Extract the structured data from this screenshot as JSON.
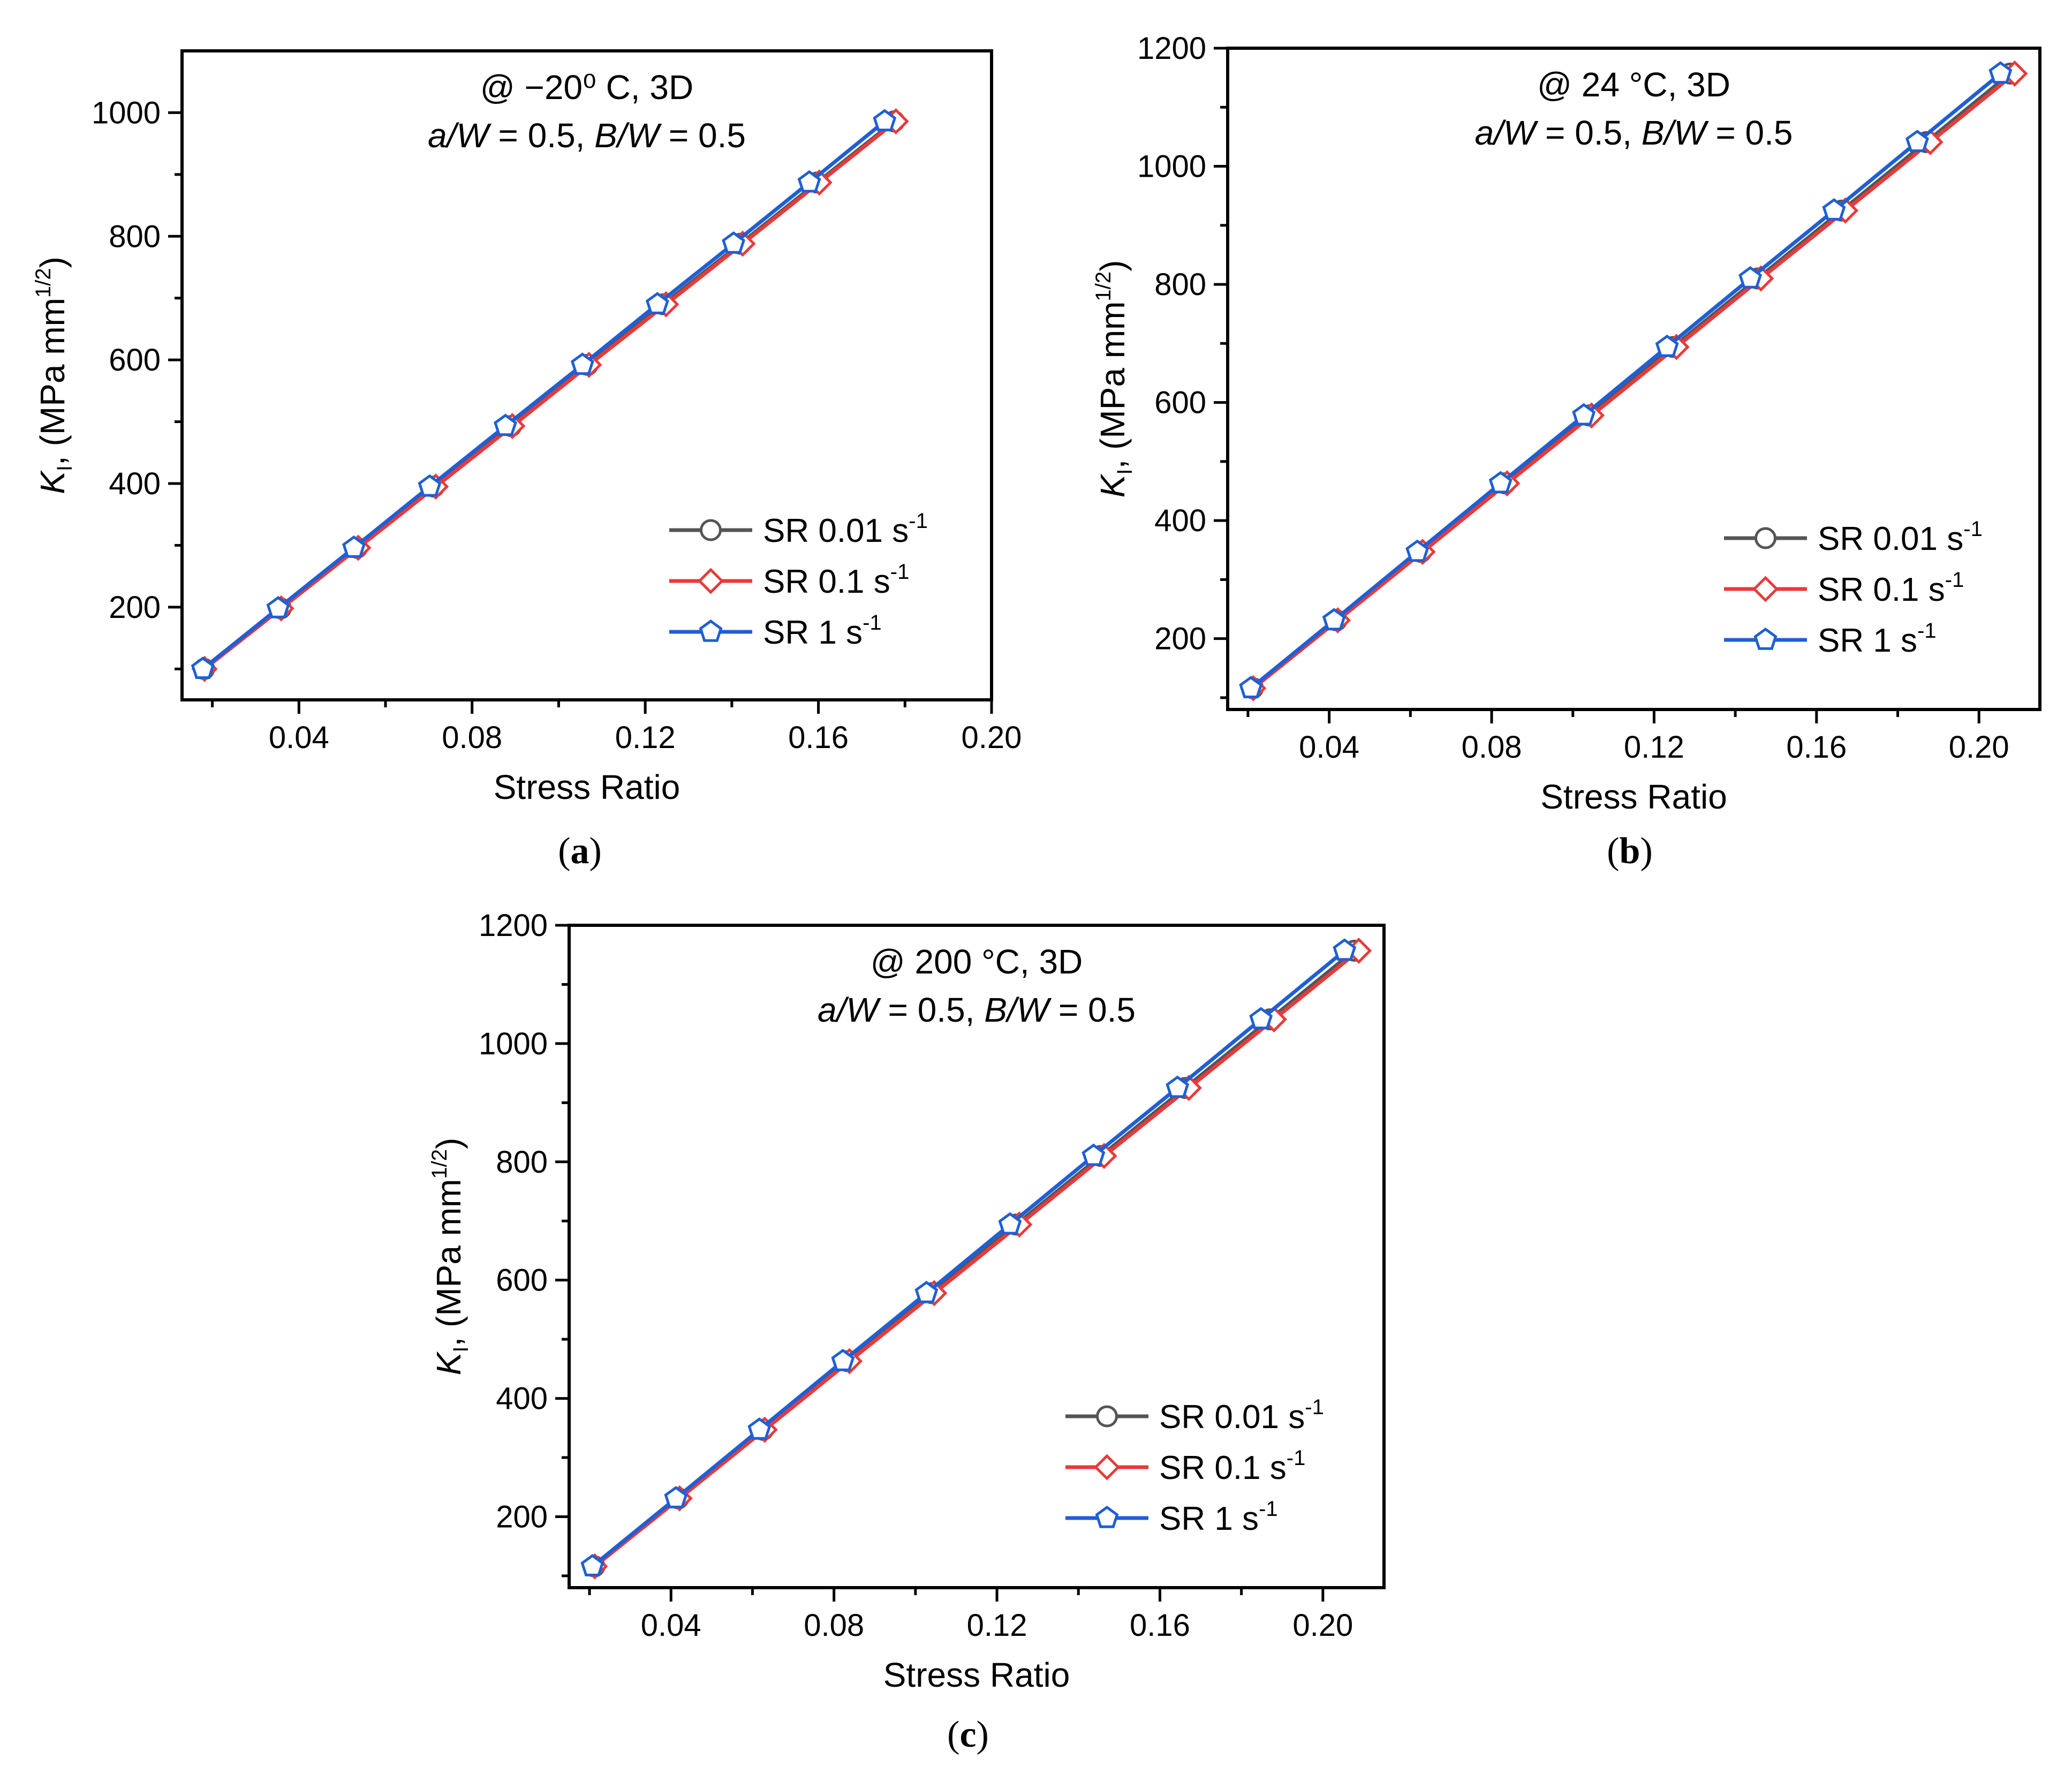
{
  "chart_data": [
    {
      "type": "line",
      "panel_label": "(a)",
      "title_line1": "@ −20⁰ C, 3D",
      "title_line2": "a/W = 0.5, B/W = 0.5",
      "xlabel": "Stress Ratio",
      "ylabel_symbol": "K",
      "ylabel_sub": "I",
      "ylabel_text": ", (MPa mm",
      "ylabel_sup": "1/2",
      "ylabel_end": ")",
      "xlim": [
        0.013,
        0.2
      ],
      "ylim": [
        50,
        1100
      ],
      "xticks": [
        0.04,
        0.08,
        0.12,
        0.16,
        0.2
      ],
      "xtick_labels": [
        "0.04",
        "0.08",
        "0.12",
        "0.16",
        "0.20"
      ],
      "yticks": [
        200,
        400,
        600,
        800,
        1000
      ],
      "ytick_labels": [
        "200",
        "400",
        "600",
        "800",
        "1000"
      ],
      "y_values": [
        100,
        198,
        296,
        395,
        493,
        592,
        690,
        788,
        887,
        986
      ],
      "series": [
        {
          "name": "SR 0.01 s",
          "sup": "-1",
          "color": "#555555",
          "marker": "circle",
          "x": [
            0.0181,
            0.0358,
            0.0534,
            0.0712,
            0.089,
            0.1067,
            0.1242,
            0.142,
            0.1597,
            0.1775
          ]
        },
        {
          "name": "SR 0.1 s",
          "sup": "-1",
          "color": "#e83a3a",
          "marker": "diamond",
          "x": [
            0.0182,
            0.0359,
            0.0537,
            0.0716,
            0.0893,
            0.107,
            0.1248,
            0.1425,
            0.1602,
            0.1779
          ]
        },
        {
          "name": "SR 1 s",
          "sup": "-1",
          "color": "#1f5fd6",
          "marker": "pentagon",
          "x": [
            0.0178,
            0.0352,
            0.0527,
            0.0702,
            0.0877,
            0.1055,
            0.1228,
            0.1404,
            0.1579,
            0.1753
          ]
        }
      ]
    },
    {
      "type": "line",
      "panel_label": "(b)",
      "title_line1": "@ 24 °C, 3D",
      "title_line2": "a/W = 0.5, B/W = 0.5",
      "xlabel": "Stress Ratio",
      "ylabel_symbol": "K",
      "ylabel_sub": "I",
      "ylabel_text": ", (MPa mm",
      "ylabel_sup": "1/2",
      "ylabel_end": ")",
      "xlim": [
        0.015,
        0.215
      ],
      "ylim": [
        80,
        1200
      ],
      "xticks": [
        0.04,
        0.08,
        0.12,
        0.16,
        0.2
      ],
      "xtick_labels": [
        "0.04",
        "0.08",
        "0.12",
        "0.16",
        "0.20"
      ],
      "yticks": [
        200,
        400,
        600,
        800,
        1000,
        1200
      ],
      "ytick_labels": [
        "200",
        "400",
        "600",
        "800",
        "1000",
        "1200"
      ],
      "y_values": [
        116,
        231,
        347,
        463,
        578,
        694,
        810,
        925,
        1041,
        1157
      ],
      "series": [
        {
          "name": "SR 0.01 s",
          "sup": "-1",
          "color": "#555555",
          "marker": "circle",
          "x": [
            0.0212,
            0.0418,
            0.0626,
            0.0833,
            0.104,
            0.1247,
            0.1455,
            0.1662,
            0.187,
            0.2077
          ]
        },
        {
          "name": "SR 0.1 s",
          "sup": "-1",
          "color": "#e83a3a",
          "marker": "diamond",
          "x": [
            0.0213,
            0.0421,
            0.063,
            0.0838,
            0.1046,
            0.1255,
            0.1463,
            0.1671,
            0.188,
            0.2088
          ]
        },
        {
          "name": "SR 1 s",
          "sup": "-1",
          "color": "#1f5fd6",
          "marker": "pentagon",
          "x": [
            0.0207,
            0.0412,
            0.0617,
            0.0822,
            0.1027,
            0.1232,
            0.1437,
            0.1643,
            0.1848,
            0.2053
          ]
        }
      ]
    },
    {
      "type": "line",
      "panel_label": "(c)",
      "title_line1": "@ 200 °C, 3D",
      "title_line2": "a/W = 0.5, B/W = 0.5",
      "xlabel": "Stress Ratio",
      "ylabel_symbol": "K",
      "ylabel_sub": "I",
      "ylabel_text": ", (MPa mm",
      "ylabel_sup": "1/2",
      "ylabel_end": ")",
      "xlim": [
        0.015,
        0.215
      ],
      "ylim": [
        80,
        1200
      ],
      "xticks": [
        0.04,
        0.08,
        0.12,
        0.16,
        0.2
      ],
      "xtick_labels": [
        "0.04",
        "0.08",
        "0.12",
        "0.16",
        "0.20"
      ],
      "yticks": [
        200,
        400,
        600,
        800,
        1000,
        1200
      ],
      "ytick_labels": [
        "200",
        "400",
        "600",
        "800",
        "1000",
        "1200"
      ],
      "y_values": [
        116,
        231,
        347,
        463,
        578,
        694,
        810,
        925,
        1041,
        1157
      ],
      "series": [
        {
          "name": "SR 0.01 s",
          "sup": "-1",
          "color": "#555555",
          "marker": "circle",
          "x": [
            0.0212,
            0.0418,
            0.0626,
            0.0833,
            0.104,
            0.1247,
            0.1455,
            0.1662,
            0.187,
            0.2077
          ]
        },
        {
          "name": "SR 0.1 s",
          "sup": "-1",
          "color": "#e83a3a",
          "marker": "diamond",
          "x": [
            0.0213,
            0.0421,
            0.063,
            0.0838,
            0.1046,
            0.1255,
            0.1463,
            0.1671,
            0.188,
            0.2088
          ]
        },
        {
          "name": "SR 1 s",
          "sup": "-1",
          "color": "#1f5fd6",
          "marker": "pentagon",
          "x": [
            0.0207,
            0.0412,
            0.0617,
            0.0822,
            0.1027,
            0.1232,
            0.1437,
            0.1643,
            0.1848,
            0.2053
          ]
        }
      ]
    }
  ]
}
